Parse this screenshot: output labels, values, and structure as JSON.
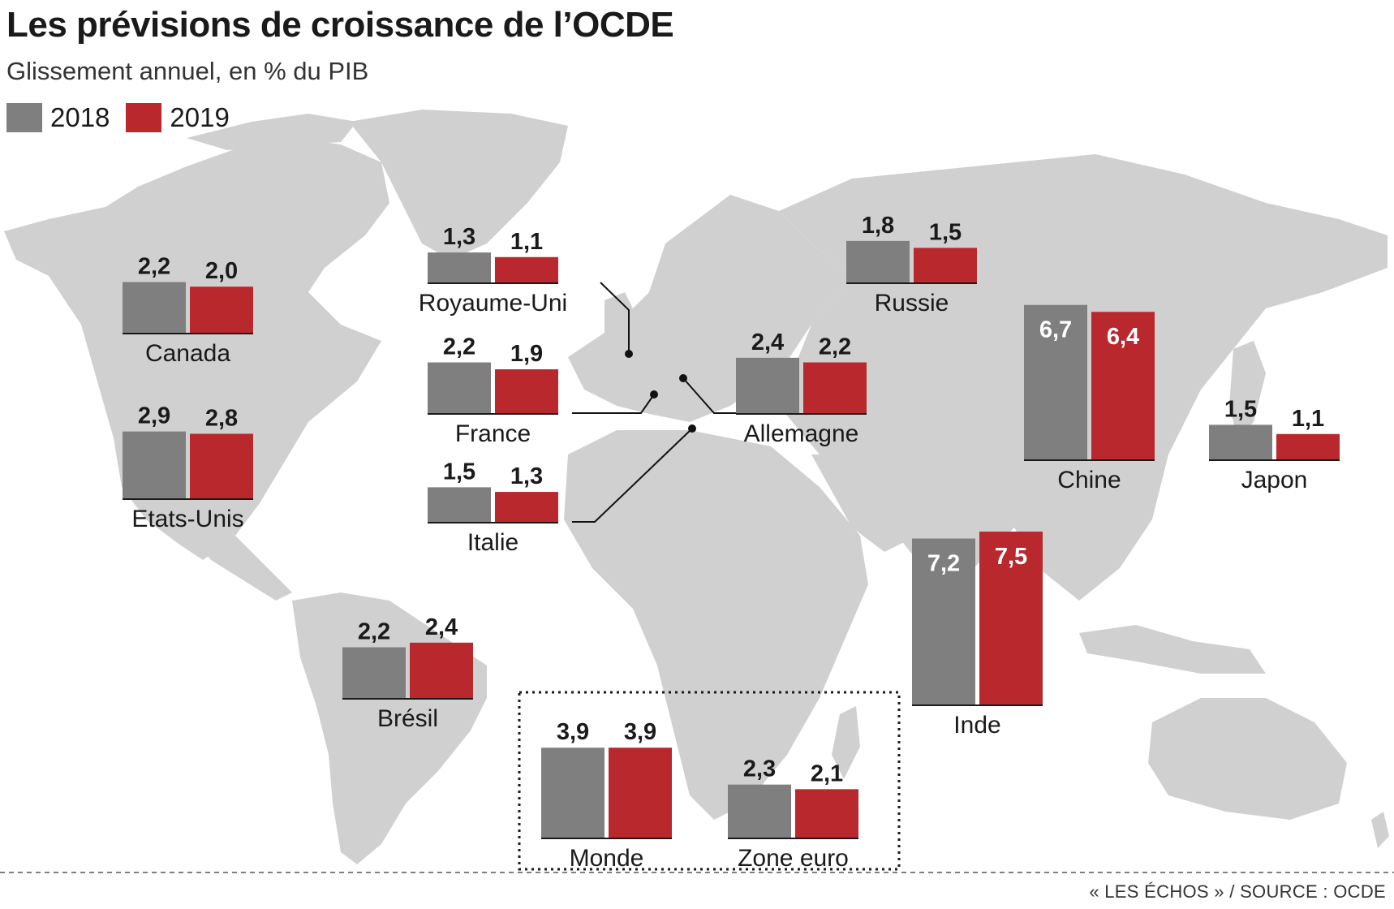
{
  "title": "Les prévisions de croissance de l’OCDE",
  "subtitle": "Glissement annuel, en % du PIB",
  "source": "« LES ÉCHOS » / SOURCE : OCDE",
  "colors": {
    "y2018": "#7f7f7f",
    "y2019": "#b8282d",
    "land": "#d0d0d0",
    "ocean": "#ffffff",
    "leader": "#111111"
  },
  "legend": [
    {
      "label": "2018",
      "color": "#7f7f7f"
    },
    {
      "label": "2019",
      "color": "#b8282d"
    }
  ],
  "chart_data": {
    "type": "bar",
    "unit": "%",
    "series_names": [
      "2018",
      "2019"
    ],
    "groups": [
      {
        "region": "Canada",
        "values": [
          2.2,
          2.0
        ],
        "labels": [
          "2,2",
          "2,0"
        ]
      },
      {
        "region": "Etats-Unis",
        "values": [
          2.9,
          2.8
        ],
        "labels": [
          "2,9",
          "2,8"
        ]
      },
      {
        "region": "Royaume-Uni",
        "values": [
          1.3,
          1.1
        ],
        "labels": [
          "1,3",
          "1,1"
        ]
      },
      {
        "region": "France",
        "values": [
          2.2,
          1.9
        ],
        "labels": [
          "2,2",
          "1,9"
        ]
      },
      {
        "region": "Italie",
        "values": [
          1.5,
          1.3
        ],
        "labels": [
          "1,5",
          "1,3"
        ]
      },
      {
        "region": "Allemagne",
        "values": [
          2.4,
          2.2
        ],
        "labels": [
          "2,4",
          "2,2"
        ]
      },
      {
        "region": "Russie",
        "values": [
          1.8,
          1.5
        ],
        "labels": [
          "1,8",
          "1,5"
        ]
      },
      {
        "region": "Chine",
        "values": [
          6.7,
          6.4
        ],
        "labels": [
          "6,7",
          "6,4"
        ]
      },
      {
        "region": "Japon",
        "values": [
          1.5,
          1.1
        ],
        "labels": [
          "1,5",
          "1,1"
        ]
      },
      {
        "region": "Inde",
        "values": [
          7.2,
          7.5
        ],
        "labels": [
          "7,2",
          "7,5"
        ]
      },
      {
        "region": "Brésil",
        "values": [
          2.2,
          2.4
        ],
        "labels": [
          "2,2",
          "2,4"
        ]
      },
      {
        "region": "Monde",
        "values": [
          3.9,
          3.9
        ],
        "labels": [
          "3,9",
          "3,9"
        ]
      },
      {
        "region": "Zone euro",
        "values": [
          2.3,
          2.1
        ],
        "labels": [
          "2,3",
          "2,1"
        ]
      }
    ]
  }
}
